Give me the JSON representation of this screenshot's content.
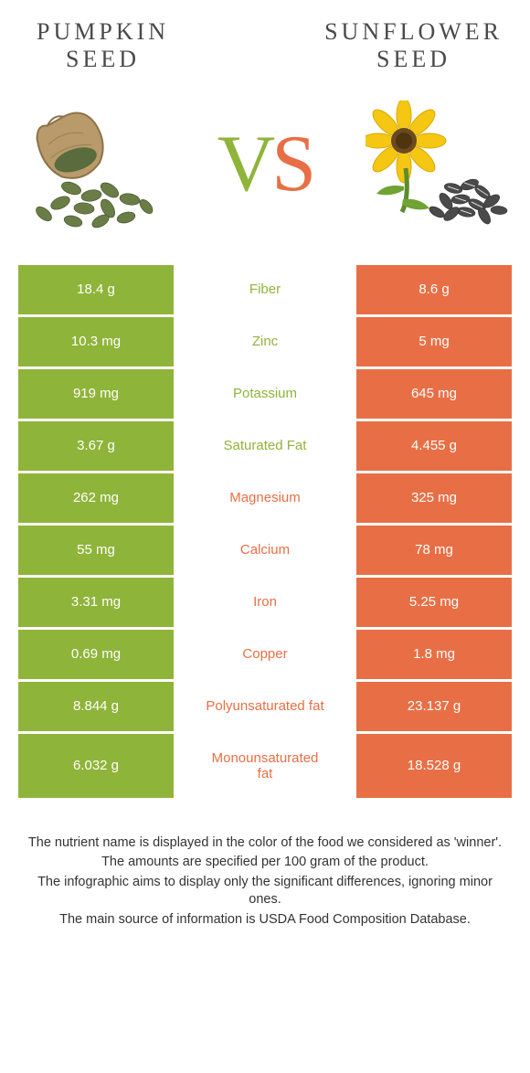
{
  "colors": {
    "left": "#8fb43a",
    "right": "#e86f45",
    "leftText": "#8fb43a",
    "rightText": "#e86f45",
    "titleText": "#4a4a4a",
    "noteText": "#333333",
    "bg": "#ffffff"
  },
  "header": {
    "leftTitle": "Pumpkin\nseed",
    "rightTitle": "Sunflower\nseed",
    "vs": {
      "v": "V",
      "s": "S"
    }
  },
  "rows": [
    {
      "left": "18.4 g",
      "label": "Fiber",
      "right": "8.6 g",
      "winner": "left",
      "tall": false
    },
    {
      "left": "10.3 mg",
      "label": "Zinc",
      "right": "5 mg",
      "winner": "left",
      "tall": false
    },
    {
      "left": "919 mg",
      "label": "Potassium",
      "right": "645 mg",
      "winner": "left",
      "tall": false
    },
    {
      "left": "3.67 g",
      "label": "Saturated Fat",
      "right": "4.455 g",
      "winner": "left",
      "tall": false
    },
    {
      "left": "262 mg",
      "label": "Magnesium",
      "right": "325 mg",
      "winner": "right",
      "tall": false
    },
    {
      "left": "55 mg",
      "label": "Calcium",
      "right": "78 mg",
      "winner": "right",
      "tall": false
    },
    {
      "left": "3.31 mg",
      "label": "Iron",
      "right": "5.25 mg",
      "winner": "right",
      "tall": false
    },
    {
      "left": "0.69 mg",
      "label": "Copper",
      "right": "1.8 mg",
      "winner": "right",
      "tall": false
    },
    {
      "left": "8.844 g",
      "label": "Polyunsaturated fat",
      "right": "23.137 g",
      "winner": "right",
      "tall": false
    },
    {
      "left": "6.032 g",
      "label": "Monounsaturated\nfat",
      "right": "18.528 g",
      "winner": "right",
      "tall": true
    }
  ],
  "notes": [
    "The nutrient name is displayed in the color of the food we considered as 'winner'.",
    "The amounts are specified per 100 gram of the product.",
    "The infographic aims to display only the significant differences, ignoring minor ones.",
    "The main source of information is USDA Food Composition Database."
  ]
}
